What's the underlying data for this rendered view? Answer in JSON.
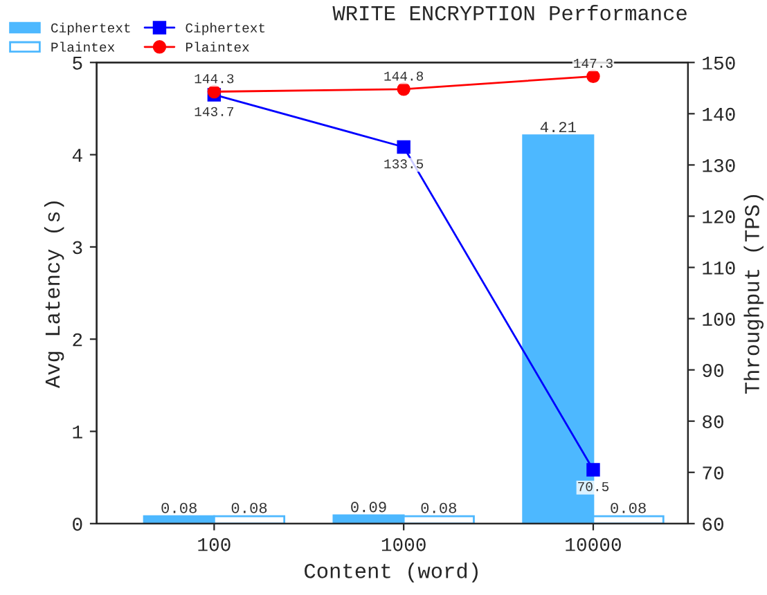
{
  "chart_data": {
    "type": "bar",
    "title": "WRITE ENCRYPTION Performance",
    "xlabel": "Content (word)",
    "ylabel": "Avg Latency (s)",
    "y2label": "Throughput (TPS)",
    "categories": [
      "100",
      "1000",
      "10000"
    ],
    "series": [
      {
        "name": "Ciphertext",
        "color": "#4db8ff",
        "values": [
          0.08,
          0.09,
          4.21
        ]
      },
      {
        "name": "Plaintex",
        "color": "#4db8ff",
        "values": [
          0.08,
          0.08,
          0.08
        ]
      },
      {
        "name": "Ciphertext",
        "type": "line",
        "axis": "y2",
        "color": "#0000ff",
        "marker": "square",
        "values": [
          143.7,
          133.5,
          70.5
        ]
      },
      {
        "name": "Plaintex",
        "type": "line",
        "axis": "y2",
        "color": "#ff0000",
        "marker": "circle",
        "values": [
          144.3,
          144.8,
          147.3
        ]
      }
    ],
    "ylim": [
      0,
      5
    ],
    "yticks": [
      0,
      1,
      2,
      3,
      4,
      5
    ],
    "y2lim": [
      60,
      150
    ],
    "y2ticks": [
      60,
      70,
      80,
      90,
      100,
      110,
      120,
      130,
      140,
      150
    ],
    "data_labels": true,
    "legend": "top left",
    "grid": false
  }
}
